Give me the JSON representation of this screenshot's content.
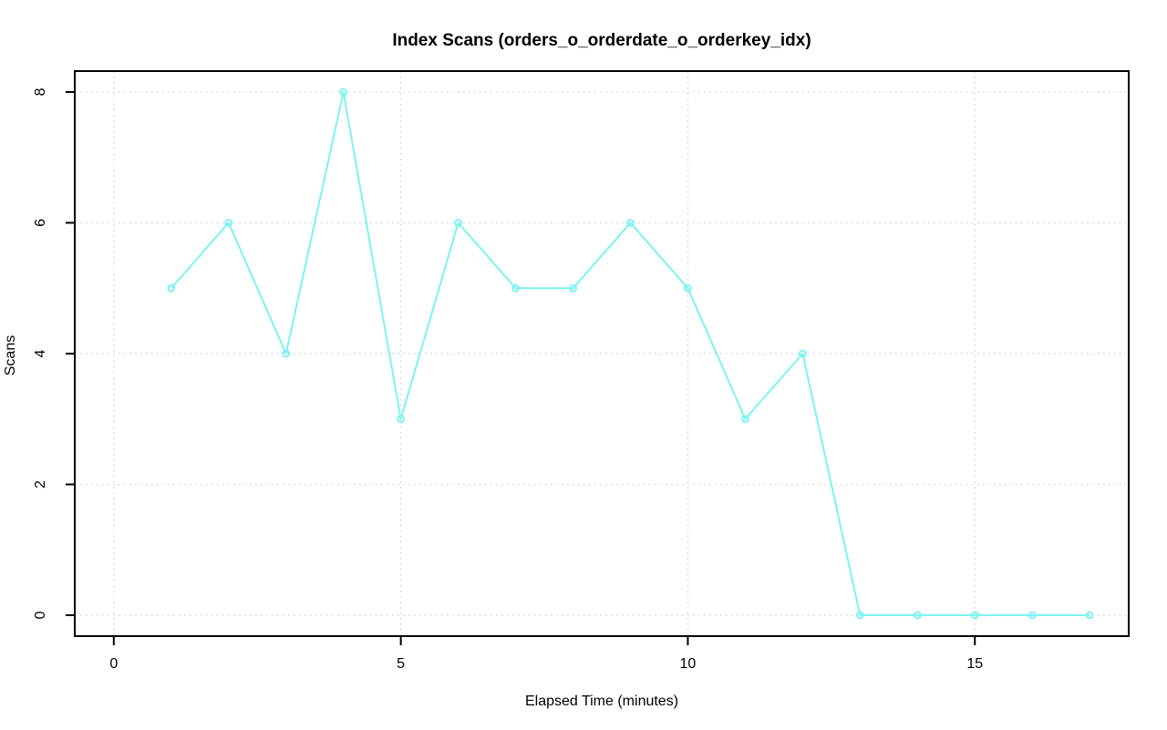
{
  "chart_data": {
    "type": "line",
    "title": "Index Scans (orders_o_orderdate_o_orderkey_idx)",
    "xlabel": "Elapsed Time (minutes)",
    "ylabel": "Scans",
    "x": [
      1,
      2,
      3,
      4,
      5,
      6,
      7,
      8,
      9,
      10,
      11,
      12,
      13,
      14,
      15,
      16,
      17
    ],
    "y": [
      5,
      6,
      4,
      8,
      3,
      6,
      5,
      5,
      6,
      5,
      3,
      4,
      0,
      0,
      0,
      0,
      0
    ],
    "xticks": [
      0,
      5,
      10,
      15
    ],
    "yticks": [
      0,
      2,
      4,
      6,
      8
    ],
    "xlim": [
      -0.68,
      17.68
    ],
    "ylim": [
      -0.32,
      8.32
    ],
    "grid": true,
    "legend": "none",
    "marker": "open-circle",
    "line_color": "#7DF3F0",
    "grid_color": "#D3D3D3",
    "axis_color": "#000000",
    "background": "#FFFFFF"
  }
}
